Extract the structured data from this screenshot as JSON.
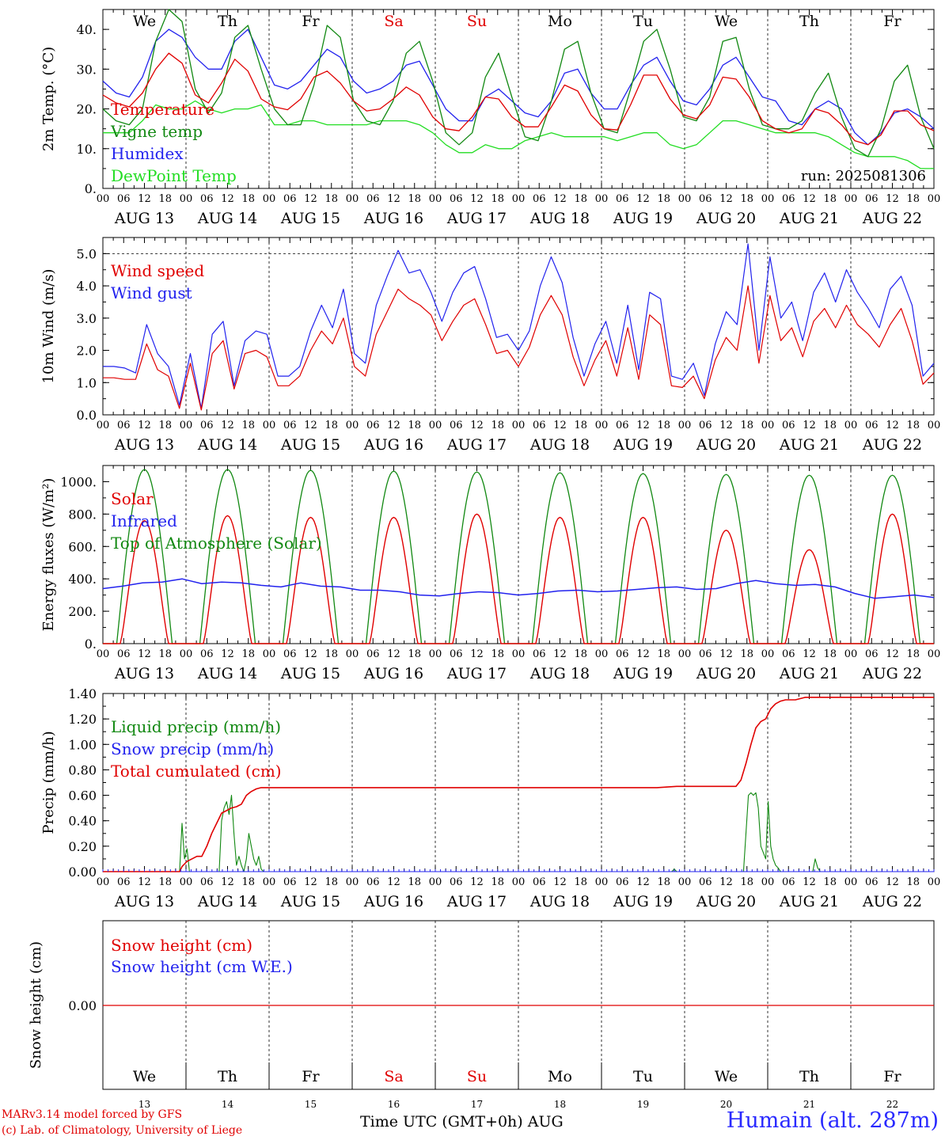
{
  "chart_data": [
    {
      "type": "line",
      "ylabel": "2m Temp. (°C)",
      "ylim": [
        0,
        45
      ],
      "yticks": [
        "0.",
        "10.",
        "20.",
        "30.",
        "40."
      ],
      "hours_per_day": 24,
      "days": [
        "AUG 13",
        "AUG 14",
        "AUG 15",
        "AUG 16",
        "AUG 17",
        "AUG 18",
        "AUG 19",
        "AUG 20",
        "AUG 21",
        "AUG 22"
      ],
      "weekdays": [
        "We",
        "Th",
        "Fr",
        "Sa",
        "Su",
        "Mo",
        "Tu",
        "We",
        "Th",
        "Fr"
      ],
      "weekday_colors": [
        "#000000",
        "#000000",
        "#000000",
        "#e00000",
        "#e00000",
        "#000000",
        "#000000",
        "#000000",
        "#000000",
        "#000000"
      ],
      "run_label": "run: 2025081306",
      "series": [
        {
          "name": "Temperature",
          "color": "#e00000",
          "values": [
            23.5,
            21.5,
            20.5,
            24,
            30,
            34,
            31.5,
            23.5,
            21.5,
            26.5,
            32.5,
            29.5,
            22.5,
            20.5,
            19.8,
            22.5,
            28,
            29.5,
            26.5,
            22,
            19.5,
            20,
            22.5,
            25.5,
            23.5,
            18,
            15,
            14.5,
            18,
            23,
            22.5,
            18,
            15.5,
            15.5,
            20.5,
            26,
            24.5,
            18.5,
            15,
            14.7,
            21,
            28.5,
            28.5,
            22.5,
            18.5,
            17.5,
            21,
            28,
            27.5,
            23,
            17,
            15,
            14,
            15,
            20,
            19,
            16,
            12,
            11,
            13.5,
            19.5,
            19.5,
            16,
            14.5
          ]
        },
        {
          "name": "Vigne temp",
          "color": "#118811",
          "values": [
            20,
            17,
            16,
            20,
            37,
            45,
            42,
            25,
            19,
            24,
            38,
            41,
            30,
            20,
            16,
            16,
            26,
            41,
            38,
            22,
            17,
            16,
            22,
            34,
            37,
            27,
            14,
            11,
            14,
            28,
            34,
            23,
            13,
            12,
            22,
            35,
            37,
            24,
            15,
            14,
            25,
            37,
            40,
            30,
            18,
            17,
            23,
            37,
            38,
            25,
            16,
            15,
            15,
            17,
            24,
            29,
            18,
            10,
            8,
            15,
            27,
            31,
            18,
            10
          ]
        },
        {
          "name": "Humidex",
          "color": "#2222ee",
          "values": [
            27,
            24,
            23,
            28,
            37,
            40,
            38,
            33,
            30,
            30,
            37,
            40,
            33,
            26,
            25,
            27,
            31,
            35,
            33,
            27,
            24,
            25,
            27,
            31,
            32,
            26,
            20,
            17,
            17,
            23,
            25,
            22,
            19,
            18,
            22,
            29,
            30,
            24,
            20,
            20,
            26,
            31,
            33,
            27,
            22,
            21,
            25,
            31,
            33,
            28,
            23,
            22,
            17,
            16,
            20,
            22,
            20,
            14,
            11,
            14,
            19,
            20,
            18,
            15
          ]
        },
        {
          "name": "DewPoint Temp",
          "color": "#22dd22",
          "values": [
            14,
            14,
            14,
            17,
            21,
            20,
            20,
            22,
            20,
            19,
            20,
            20,
            21,
            16,
            16,
            17,
            17,
            16,
            16,
            16,
            16,
            17,
            17,
            17,
            16,
            14,
            11,
            9,
            9,
            11,
            10,
            10,
            12,
            13,
            14,
            13,
            13,
            13,
            13,
            12,
            13,
            14,
            14,
            11,
            10,
            11,
            14,
            17,
            17,
            16,
            15,
            14,
            14,
            14,
            14,
            13,
            11,
            9,
            8,
            8,
            8,
            7,
            5,
            5
          ]
        }
      ]
    },
    {
      "type": "line",
      "ylabel": "10m Wind (m/s)",
      "ylim": [
        0,
        5.5
      ],
      "yticks": [
        "0.0",
        "1.0",
        "2.0",
        "3.0",
        "4.0",
        "5.0"
      ],
      "reference_line": 5.0,
      "days": [
        "AUG 13",
        "AUG 14",
        "AUG 15",
        "AUG 16",
        "AUG 17",
        "AUG 18",
        "AUG 19",
        "AUG 20",
        "AUG 21",
        "AUG 22"
      ],
      "series": [
        {
          "name": "Wind speed",
          "color": "#e00000",
          "values": [
            1.15,
            1.15,
            1.1,
            1.1,
            2.2,
            1.4,
            1.2,
            0.2,
            1.6,
            0.15,
            1.9,
            2.3,
            0.8,
            1.9,
            2,
            1.8,
            0.9,
            0.9,
            1.2,
            2,
            2.6,
            2.2,
            3,
            1.5,
            1.2,
            2.5,
            3.2,
            3.9,
            3.6,
            3.4,
            3.1,
            2.3,
            2.9,
            3.4,
            3.6,
            2.8,
            1.9,
            2,
            1.5,
            2.1,
            3.1,
            3.7,
            3.1,
            1.8,
            0.9,
            1.7,
            2.3,
            1.2,
            2.7,
            1.1,
            3.1,
            2.8,
            0.9,
            0.85,
            1.2,
            0.5,
            1.7,
            2.4,
            2,
            4,
            1.6,
            3.7,
            2.3,
            2.7,
            1.8,
            2.9,
            3.3,
            2.7,
            3.4,
            2.8,
            2.5,
            2.1,
            2.8,
            3.3,
            2.3,
            0.95,
            1.3
          ]
        },
        {
          "name": "Wind gust",
          "color": "#2222ee",
          "values": [
            1.5,
            1.5,
            1.45,
            1.3,
            2.8,
            1.9,
            1.5,
            0.3,
            1.9,
            0.2,
            2.5,
            2.9,
            0.9,
            2.3,
            2.6,
            2.5,
            1.2,
            1.2,
            1.5,
            2.6,
            3.4,
            2.7,
            3.9,
            1.9,
            1.6,
            3.4,
            4.3,
            5.1,
            4.4,
            4.5,
            3.8,
            2.9,
            3.8,
            4.4,
            4.6,
            3.6,
            2.4,
            2.5,
            2,
            2.6,
            4,
            4.9,
            4.1,
            2.4,
            1.2,
            2.2,
            2.9,
            1.6,
            3.4,
            1.4,
            3.8,
            3.6,
            1.2,
            1.1,
            1.6,
            0.6,
            2.2,
            3.2,
            2.8,
            5.3,
            2,
            4.9,
            3,
            3.5,
            2.3,
            3.8,
            4.4,
            3.5,
            4.5,
            3.8,
            3.3,
            2.7,
            3.9,
            4.3,
            3.4,
            1.2,
            1.6
          ]
        }
      ]
    },
    {
      "type": "line",
      "ylabel": "Energy fluxes (W/m²)",
      "ylim": [
        0,
        1100
      ],
      "yticks": [
        "0.",
        "200.",
        "400.",
        "600.",
        "800.",
        "1000."
      ],
      "days": [
        "AUG 13",
        "AUG 14",
        "AUG 15",
        "AUG 16",
        "AUG 17",
        "AUG 18",
        "AUG 19",
        "AUG 20",
        "AUG 21",
        "AUG 22"
      ],
      "day_peaks": {
        "solar": [
          760,
          790,
          780,
          780,
          800,
          780,
          780,
          700,
          580,
          800
        ],
        "top_of_atmosphere": [
          1075,
          1075,
          1070,
          1065,
          1060,
          1055,
          1050,
          1045,
          1040,
          1040
        ]
      },
      "series": [
        {
          "name": "Solar",
          "color": "#e00000"
        },
        {
          "name": "Infrared",
          "color": "#2222ee",
          "values": [
            340,
            355,
            375,
            380,
            400,
            370,
            380,
            375,
            360,
            350,
            375,
            355,
            350,
            330,
            330,
            320,
            300,
            295,
            310,
            320,
            315,
            300,
            310,
            325,
            330,
            320,
            325,
            335,
            345,
            350,
            335,
            340,
            370,
            390,
            370,
            360,
            365,
            350,
            310,
            280,
            290,
            300,
            285
          ]
        },
        {
          "name": "Top of Atmosphere (Solar)",
          "color": "#118811"
        }
      ]
    },
    {
      "type": "line",
      "ylabel": "Precip (mm/h)",
      "ylim": [
        0,
        1.4
      ],
      "yticks": [
        "0.00",
        "0.20",
        "0.40",
        "0.60",
        "0.80",
        "1.00",
        "1.20",
        "1.40"
      ],
      "days": [
        "AUG 13",
        "AUG 14",
        "AUG 15",
        "AUG 16",
        "AUG 17",
        "AUG 18",
        "AUG 19",
        "AUG 20",
        "AUG 21",
        "AUG 22"
      ],
      "series": [
        {
          "name": "Liquid precip (mm/h)",
          "color": "#118811",
          "points": [
            [
              0,
              0
            ],
            [
              93,
              0
            ],
            [
              96,
              0.38
            ],
            [
              99,
              0.1
            ],
            [
              102,
              0.18
            ],
            [
              105,
              0
            ],
            [
              141,
              0
            ],
            [
              144,
              0.4
            ],
            [
              147,
              0.5
            ],
            [
              150,
              0.55
            ],
            [
              153,
              0.45
            ],
            [
              156,
              0.6
            ],
            [
              159,
              0.3
            ],
            [
              162,
              0.05
            ],
            [
              165,
              0.12
            ],
            [
              168,
              0.05
            ],
            [
              171,
              0
            ],
            [
              174,
              0.1
            ],
            [
              177,
              0.3
            ],
            [
              180,
              0.2
            ],
            [
              183,
              0.1
            ],
            [
              186,
              0.05
            ],
            [
              189,
              0.12
            ],
            [
              192,
              0.02
            ],
            [
              195,
              0
            ],
            [
              690,
              0
            ],
            [
              693,
              0.02
            ],
            [
              696,
              0
            ],
            [
              777,
              0
            ],
            [
              780,
              0.3
            ],
            [
              783,
              0.6
            ],
            [
              786,
              0.62
            ],
            [
              789,
              0.6
            ],
            [
              792,
              0.62
            ],
            [
              795,
              0.5
            ],
            [
              798,
              0.2
            ],
            [
              801,
              0.15
            ],
            [
              804,
              0.1
            ],
            [
              807,
              0.55
            ],
            [
              810,
              0.2
            ],
            [
              813,
              0.1
            ],
            [
              816,
              0.05
            ],
            [
              819,
              0.03
            ],
            [
              822,
              0
            ],
            [
              861,
              0
            ],
            [
              864,
              0.1
            ],
            [
              867,
              0.03
            ],
            [
              870,
              0
            ],
            [
              1008,
              0
            ]
          ]
        },
        {
          "name": "Snow precip (mm/h)",
          "color": "#2222ee",
          "points": [
            [
              0,
              0
            ],
            [
              1008,
              0
            ]
          ]
        },
        {
          "name": "Total cumulated (cm)",
          "color": "#e00000",
          "points": [
            [
              0,
              0
            ],
            [
              93,
              0
            ],
            [
              96,
              0.04
            ],
            [
              102,
              0.08
            ],
            [
              108,
              0.1
            ],
            [
              114,
              0.12
            ],
            [
              120,
              0.12
            ],
            [
              126,
              0.2
            ],
            [
              132,
              0.3
            ],
            [
              138,
              0.38
            ],
            [
              144,
              0.46
            ],
            [
              150,
              0.48
            ],
            [
              156,
              0.5
            ],
            [
              162,
              0.51
            ],
            [
              168,
              0.53
            ],
            [
              174,
              0.6
            ],
            [
              180,
              0.63
            ],
            [
              186,
              0.65
            ],
            [
              192,
              0.66
            ],
            [
              204,
              0.66
            ],
            [
              672,
              0.66
            ],
            [
              696,
              0.67
            ],
            [
              756,
              0.67
            ],
            [
              768,
              0.67
            ],
            [
              774,
              0.72
            ],
            [
              780,
              0.85
            ],
            [
              786,
              1.0
            ],
            [
              792,
              1.13
            ],
            [
              798,
              1.18
            ],
            [
              804,
              1.2
            ],
            [
              810,
              1.28
            ],
            [
              816,
              1.32
            ],
            [
              822,
              1.34
            ],
            [
              828,
              1.35
            ],
            [
              840,
              1.35
            ],
            [
              852,
              1.37
            ],
            [
              864,
              1.37
            ],
            [
              1008,
              1.37
            ]
          ]
        }
      ]
    },
    {
      "type": "line",
      "ylabel": "Snow height (cm)",
      "yticks": [
        "0.00"
      ],
      "weekdays": [
        "We",
        "Th",
        "Fr",
        "Sa",
        "Su",
        "Mo",
        "Tu",
        "We",
        "Th",
        "Fr"
      ],
      "weekday_colors": [
        "#000000",
        "#000000",
        "#000000",
        "#e00000",
        "#e00000",
        "#000000",
        "#000000",
        "#000000",
        "#000000",
        "#000000"
      ],
      "day_numbers": [
        "13",
        "14",
        "15",
        "16",
        "17",
        "18",
        "19",
        "20",
        "21",
        "22"
      ],
      "series": [
        {
          "name": "Snow height (cm)",
          "color": "#e00000",
          "values": [
            0,
            0
          ]
        },
        {
          "name": "Snow height (cm W.E.)",
          "color": "#2222ee",
          "values": [
            0,
            0
          ]
        }
      ]
    }
  ],
  "hour_labels": [
    "00",
    "06",
    "12",
    "18"
  ],
  "footer": {
    "model": "MARv3.14 model forced by GFS",
    "credit": "(c) Lab. of Climatology, University of Liege",
    "xaxis": "Time UTC (GMT+0h) AUG",
    "station": "Humain (alt. 287m)"
  }
}
